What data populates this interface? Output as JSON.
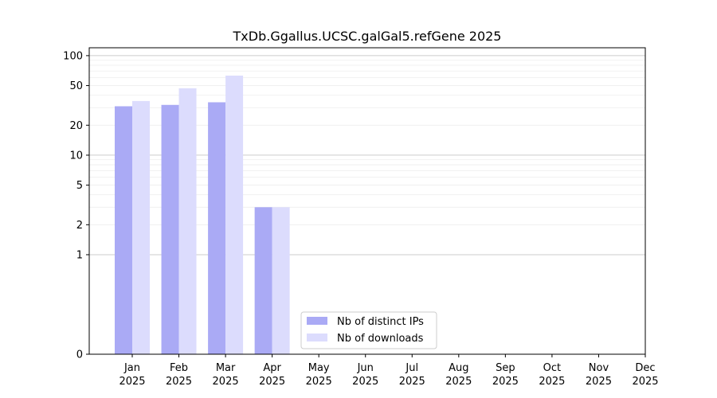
{
  "chart_data": {
    "type": "bar",
    "title": "TxDb.Ggallus.UCSC.galGal5.refGene 2025",
    "xlabel": "",
    "ylabel": "",
    "y_scale": "symlog",
    "ylim": [
      0,
      120
    ],
    "y_ticks": [
      0,
      1,
      2,
      5,
      10,
      20,
      50,
      100
    ],
    "y_tick_labels": [
      "0",
      "1",
      "2",
      "5",
      "10",
      "20",
      "50",
      "100"
    ],
    "categories": [
      "Jan",
      "Feb",
      "Mar",
      "Apr",
      "May",
      "Jun",
      "Jul",
      "Aug",
      "Sep",
      "Oct",
      "Nov",
      "Dec"
    ],
    "category_years": [
      "2025",
      "2025",
      "2025",
      "2025",
      "2025",
      "2025",
      "2025",
      "2025",
      "2025",
      "2025",
      "2025",
      "2025"
    ],
    "series": [
      {
        "name": "Nb of distinct IPs",
        "color": "#aaaaf5",
        "values": [
          31,
          32,
          34,
          3,
          0,
          0,
          0,
          0,
          0,
          0,
          0,
          0
        ]
      },
      {
        "name": "Nb of downloads",
        "color": "#dcdcfd",
        "values": [
          35,
          47,
          63,
          3,
          0,
          0,
          0,
          0,
          0,
          0,
          0,
          0
        ]
      }
    ],
    "grid": true,
    "legend_position": "lower-center"
  }
}
